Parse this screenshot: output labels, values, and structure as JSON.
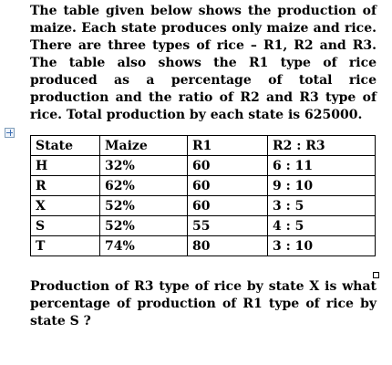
{
  "intro_text": "The table given below shows the production of maize. Each state produces only maize and rice. There are three types of rice – R1, R2 and R3. The table also shows the R1 type of rice produced as a percentage of total rice production and the ratio of R2 and R3 type of rice. Total production by each state is 625000.",
  "table": {
    "headers": {
      "state": "State",
      "maize": "Maize",
      "r1": "R1",
      "ratio": "R2 : R3"
    },
    "rows": [
      {
        "state": "H",
        "maize": "32%",
        "r1": "60",
        "ratio": "6 : 11"
      },
      {
        "state": "R",
        "maize": "62%",
        "r1": "60",
        "ratio": "9 : 10"
      },
      {
        "state": "X",
        "maize": "52%",
        "r1": "60",
        "ratio": "3 : 5"
      },
      {
        "state": "S",
        "maize": "52%",
        "r1": "55",
        "ratio": "4 : 5"
      },
      {
        "state": "T",
        "maize": "74%",
        "r1": "80",
        "ratio": "3 : 10"
      }
    ]
  },
  "question_text": "Production of R3 type of rice by state X is what percentage of production of R1 type of rice by state S ?",
  "icons": {
    "move_handle": "move-cross-icon",
    "resize_handle": "resize-square-icon"
  }
}
